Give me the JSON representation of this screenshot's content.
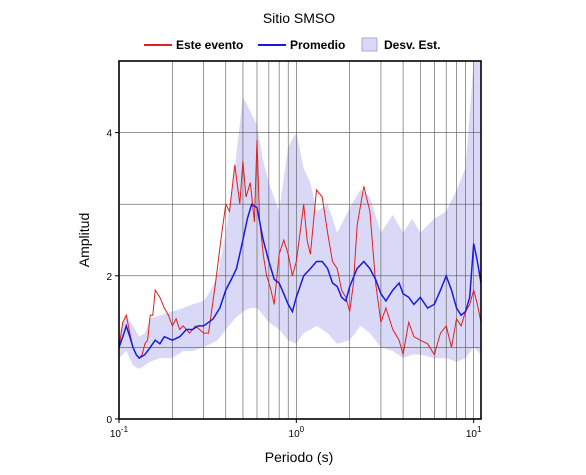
{
  "chart_data": {
    "type": "line",
    "title": "Sitio SMSO",
    "xlabel": "Periodo (s)",
    "ylabel": "Amplitud",
    "xscale": "log",
    "xlim": [
      0.1,
      11
    ],
    "ylim": [
      0,
      5
    ],
    "grid": true,
    "legend_position": "top",
    "x_ticks": [
      {
        "value": 0.1,
        "base": "10",
        "exp": "-1"
      },
      {
        "value": 1,
        "base": "10",
        "exp": "0"
      },
      {
        "value": 10,
        "base": "10",
        "exp": "1"
      }
    ],
    "y_ticks": [
      {
        "value": 0,
        "label": "0"
      },
      {
        "value": 2,
        "label": "2"
      },
      {
        "value": 4,
        "label": "4"
      }
    ],
    "legend": [
      {
        "label": "Este evento",
        "kind": "line",
        "color": "#e02020"
      },
      {
        "label": "Promedio",
        "kind": "line",
        "color": "#1a1ae0"
      },
      {
        "label": "Desv. Est.",
        "kind": "band",
        "color": "#d9d9f7"
      }
    ],
    "series": [
      {
        "name": "Este evento",
        "color": "#e02020",
        "x": [
          0.1,
          0.105,
          0.11,
          0.115,
          0.12,
          0.125,
          0.13,
          0.135,
          0.14,
          0.145,
          0.15,
          0.155,
          0.16,
          0.17,
          0.18,
          0.19,
          0.2,
          0.21,
          0.22,
          0.23,
          0.25,
          0.27,
          0.3,
          0.32,
          0.35,
          0.38,
          0.4,
          0.42,
          0.45,
          0.48,
          0.5,
          0.52,
          0.55,
          0.58,
          0.6,
          0.62,
          0.65,
          0.68,
          0.7,
          0.72,
          0.75,
          0.8,
          0.85,
          0.9,
          0.95,
          1.0,
          1.05,
          1.1,
          1.15,
          1.2,
          1.3,
          1.4,
          1.5,
          1.6,
          1.7,
          1.8,
          1.9,
          2.0,
          2.1,
          2.2,
          2.4,
          2.6,
          2.8,
          3.0,
          3.2,
          3.5,
          3.8,
          4.0,
          4.3,
          4.6,
          5.0,
          5.5,
          6.0,
          6.5,
          7.0,
          7.5,
          8.0,
          8.5,
          9.0,
          9.5,
          10.0,
          10.5,
          11.0
        ],
        "y": [
          1.0,
          1.35,
          1.45,
          1.2,
          1.0,
          0.9,
          0.85,
          0.9,
          1.05,
          1.1,
          1.45,
          1.45,
          1.8,
          1.7,
          1.55,
          1.45,
          1.3,
          1.4,
          1.25,
          1.3,
          1.2,
          1.3,
          1.2,
          1.2,
          1.9,
          2.6,
          3.0,
          2.9,
          3.55,
          3.0,
          3.6,
          3.1,
          3.3,
          2.75,
          3.9,
          2.8,
          2.3,
          2.0,
          1.9,
          1.8,
          1.6,
          2.3,
          2.5,
          2.3,
          2.0,
          2.2,
          2.6,
          3.0,
          2.5,
          2.3,
          3.2,
          3.1,
          2.6,
          2.2,
          2.1,
          1.8,
          1.7,
          1.5,
          1.9,
          2.7,
          3.25,
          2.9,
          1.9,
          1.35,
          1.55,
          1.25,
          1.1,
          0.9,
          1.35,
          1.15,
          1.1,
          1.05,
          0.9,
          1.2,
          1.3,
          1.0,
          1.4,
          1.3,
          1.5,
          1.6,
          1.8,
          1.6,
          1.35
        ]
      },
      {
        "name": "Promedio",
        "color": "#1a1ae0",
        "x": [
          0.1,
          0.105,
          0.11,
          0.115,
          0.12,
          0.125,
          0.13,
          0.14,
          0.15,
          0.16,
          0.17,
          0.18,
          0.2,
          0.22,
          0.24,
          0.26,
          0.28,
          0.3,
          0.32,
          0.34,
          0.37,
          0.4,
          0.43,
          0.46,
          0.5,
          0.53,
          0.56,
          0.6,
          0.65,
          0.7,
          0.75,
          0.8,
          0.85,
          0.9,
          0.95,
          1.0,
          1.1,
          1.2,
          1.3,
          1.4,
          1.5,
          1.6,
          1.7,
          1.8,
          1.9,
          2.0,
          2.2,
          2.4,
          2.6,
          2.8,
          3.0,
          3.2,
          3.5,
          3.8,
          4.0,
          4.3,
          4.6,
          5.0,
          5.5,
          6.0,
          6.5,
          7.0,
          7.5,
          8.0,
          8.5,
          9.0,
          9.5,
          10.0,
          10.5,
          11.0
        ],
        "y": [
          1.0,
          1.15,
          1.3,
          1.15,
          1.0,
          0.9,
          0.85,
          0.9,
          1.0,
          1.1,
          1.05,
          1.15,
          1.1,
          1.15,
          1.25,
          1.25,
          1.3,
          1.3,
          1.35,
          1.4,
          1.55,
          1.8,
          1.95,
          2.1,
          2.5,
          2.8,
          3.0,
          2.95,
          2.5,
          2.2,
          1.95,
          1.9,
          1.75,
          1.6,
          1.5,
          1.7,
          2.0,
          2.1,
          2.2,
          2.2,
          2.1,
          1.9,
          1.85,
          1.7,
          1.65,
          1.85,
          2.1,
          2.2,
          2.1,
          1.95,
          1.75,
          1.65,
          1.8,
          1.9,
          1.75,
          1.7,
          1.6,
          1.7,
          1.55,
          1.6,
          1.8,
          2.0,
          1.8,
          1.55,
          1.45,
          1.5,
          1.7,
          2.45,
          2.2,
          1.9
        ]
      },
      {
        "name": "Desv. Est.",
        "kind": "band",
        "color": "#d9d9f7",
        "x": [
          0.1,
          0.11,
          0.12,
          0.13,
          0.14,
          0.15,
          0.17,
          0.2,
          0.23,
          0.26,
          0.3,
          0.33,
          0.36,
          0.4,
          0.45,
          0.5,
          0.55,
          0.6,
          0.65,
          0.7,
          0.8,
          0.9,
          1.0,
          1.1,
          1.2,
          1.3,
          1.5,
          1.7,
          2.0,
          2.3,
          2.6,
          3.0,
          3.5,
          4.0,
          4.5,
          5.0,
          6.0,
          7.0,
          8.0,
          9.0,
          10.0,
          11.0
        ],
        "lower": [
          0.85,
          0.95,
          0.75,
          0.7,
          0.75,
          0.8,
          0.85,
          0.85,
          0.95,
          0.95,
          1.0,
          1.05,
          1.1,
          1.25,
          1.4,
          1.5,
          1.55,
          1.55,
          1.45,
          1.35,
          1.25,
          1.1,
          1.05,
          1.2,
          1.25,
          1.3,
          1.2,
          1.05,
          1.1,
          1.3,
          1.2,
          1.0,
          0.95,
          0.85,
          0.9,
          0.9,
          0.85,
          0.85,
          0.8,
          0.85,
          1.0,
          0.9
        ],
        "upper": [
          1.2,
          1.45,
          1.3,
          1.15,
          1.2,
          1.4,
          1.45,
          1.5,
          1.55,
          1.6,
          1.65,
          1.8,
          2.0,
          2.6,
          3.5,
          4.5,
          4.3,
          4.1,
          3.6,
          3.3,
          2.9,
          3.8,
          4.0,
          3.5,
          3.3,
          2.9,
          3.0,
          2.6,
          2.95,
          3.2,
          3.1,
          2.6,
          2.85,
          2.6,
          2.8,
          2.6,
          2.8,
          2.9,
          3.2,
          3.5,
          5.0,
          5.0
        ]
      }
    ]
  }
}
